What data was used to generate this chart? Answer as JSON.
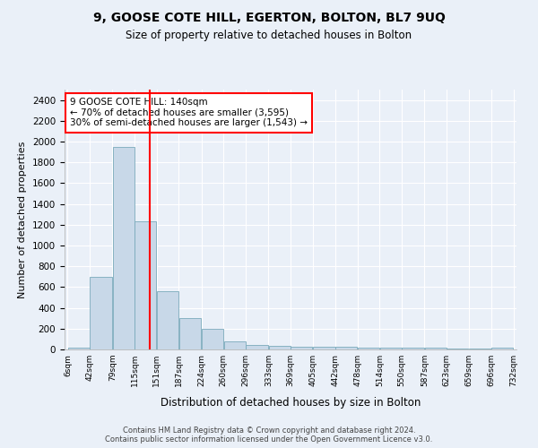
{
  "title": "9, GOOSE COTE HILL, EGERTON, BOLTON, BL7 9UQ",
  "subtitle": "Size of property relative to detached houses in Bolton",
  "xlabel": "Distribution of detached houses by size in Bolton",
  "ylabel": "Number of detached properties",
  "bar_color": "#c8d8e8",
  "bar_edge_color": "#7aaabb",
  "background_color": "#eaf0f8",
  "grid_color": "white",
  "vline_x": 140,
  "vline_color": "red",
  "annotation_text": "9 GOOSE COTE HILL: 140sqm\n← 70% of detached houses are smaller (3,595)\n30% of semi-detached houses are larger (1,543) →",
  "annotation_box_color": "white",
  "annotation_box_edge": "red",
  "footnote": "Contains HM Land Registry data © Crown copyright and database right 2024.\nContains public sector information licensed under the Open Government Licence v3.0.",
  "bin_edges": [
    6,
    42,
    79,
    115,
    151,
    187,
    224,
    260,
    296,
    333,
    369,
    405,
    442,
    478,
    514,
    550,
    587,
    623,
    659,
    696,
    732
  ],
  "bin_labels": [
    "6sqm",
    "42sqm",
    "79sqm",
    "115sqm",
    "151sqm",
    "187sqm",
    "224sqm",
    "260sqm",
    "296sqm",
    "333sqm",
    "369sqm",
    "405sqm",
    "442sqm",
    "478sqm",
    "514sqm",
    "550sqm",
    "587sqm",
    "623sqm",
    "659sqm",
    "696sqm",
    "732sqm"
  ],
  "bar_heights": [
    20,
    700,
    1950,
    1230,
    560,
    305,
    200,
    80,
    40,
    35,
    30,
    30,
    25,
    20,
    20,
    15,
    15,
    10,
    10,
    15
  ],
  "ylim": [
    0,
    2500
  ],
  "yticks": [
    0,
    200,
    400,
    600,
    800,
    1000,
    1200,
    1400,
    1600,
    1800,
    2000,
    2200,
    2400
  ]
}
